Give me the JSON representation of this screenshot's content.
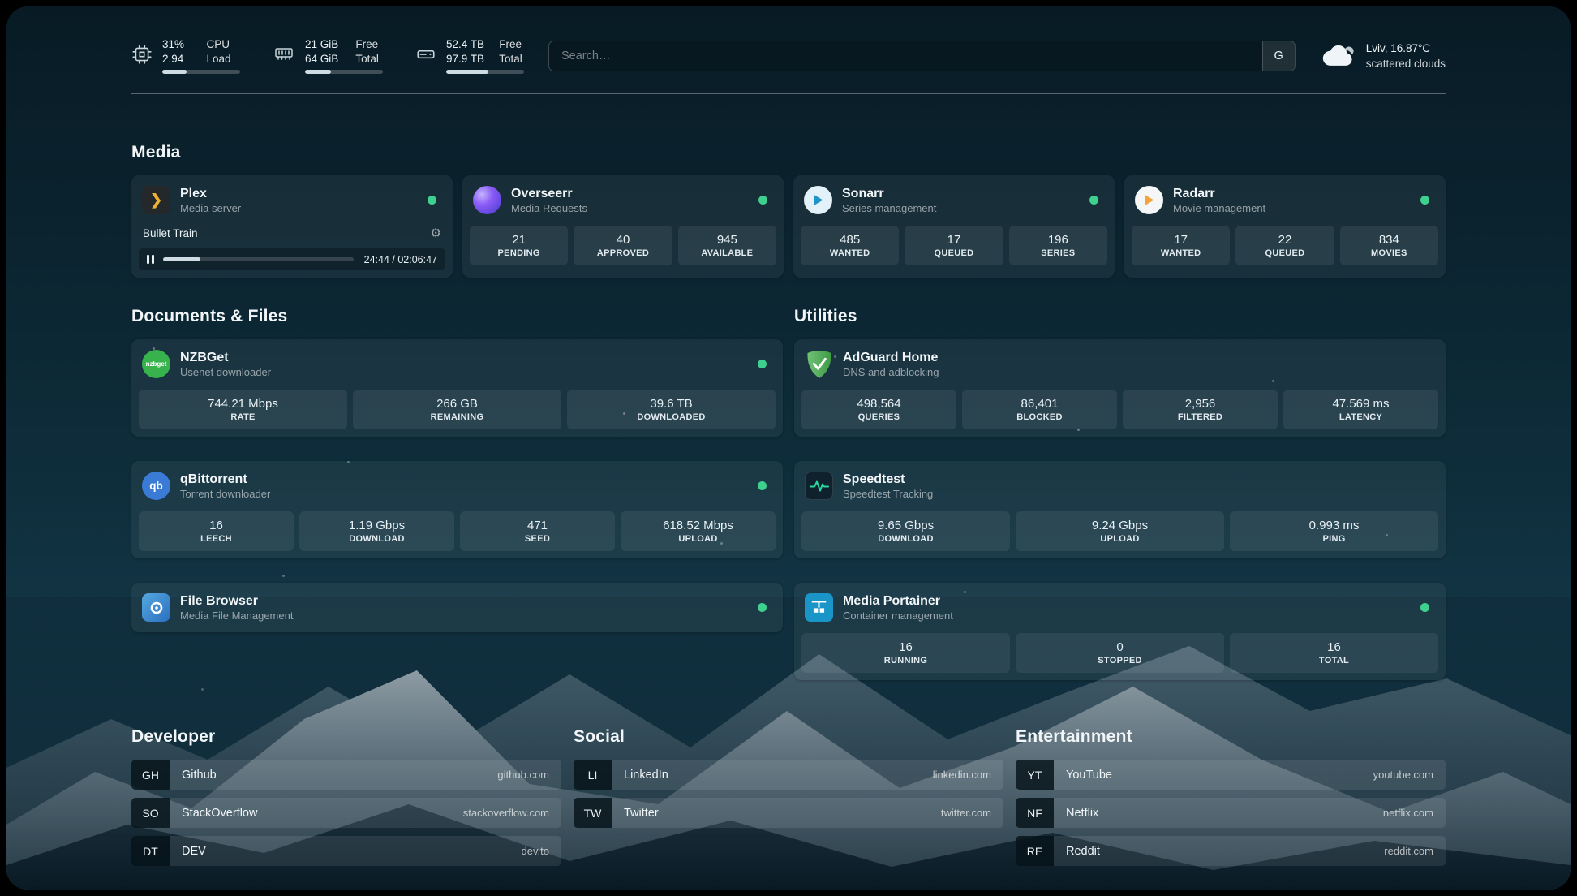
{
  "colors": {
    "status_online": "#3fcf8e"
  },
  "topbar": {
    "cpu": {
      "value1": "31%",
      "label1": "CPU",
      "value2": "2.94",
      "label2": "Load",
      "progress": 31
    },
    "memory": {
      "value1": "21 GiB",
      "label1": "Free",
      "value2": "64 GiB",
      "label2": "Total",
      "progress": 33
    },
    "disk": {
      "value1": "52.4 TB",
      "label1": "Free",
      "value2": "97.9 TB",
      "label2": "Total",
      "progress": 54
    },
    "search": {
      "placeholder": "Search…",
      "provider": "G"
    },
    "weather": {
      "location": "Lviv, 16.87°C",
      "condition": "scattered clouds"
    }
  },
  "sections": {
    "media": {
      "title": "Media"
    },
    "documents": {
      "title": "Documents & Files"
    },
    "utilities": {
      "title": "Utilities"
    },
    "developer": {
      "title": "Developer"
    },
    "social": {
      "title": "Social"
    },
    "entertainment": {
      "title": "Entertainment"
    }
  },
  "services": {
    "plex": {
      "name": "Plex",
      "desc": "Media server",
      "now_playing": "Bullet Train",
      "time": "24:44 / 02:06:47",
      "progress": 19.5
    },
    "overseerr": {
      "name": "Overseerr",
      "desc": "Media Requests",
      "stats": [
        {
          "value": "21",
          "label": "PENDING"
        },
        {
          "value": "40",
          "label": "APPROVED"
        },
        {
          "value": "945",
          "label": "AVAILABLE"
        }
      ]
    },
    "sonarr": {
      "name": "Sonarr",
      "desc": "Series management",
      "stats": [
        {
          "value": "485",
          "label": "WANTED"
        },
        {
          "value": "17",
          "label": "QUEUED"
        },
        {
          "value": "196",
          "label": "SERIES"
        }
      ]
    },
    "radarr": {
      "name": "Radarr",
      "desc": "Movie management",
      "stats": [
        {
          "value": "17",
          "label": "WANTED"
        },
        {
          "value": "22",
          "label": "QUEUED"
        },
        {
          "value": "834",
          "label": "MOVIES"
        }
      ]
    },
    "nzbget": {
      "name": "NZBGet",
      "desc": "Usenet downloader",
      "icon_text": "nzbget",
      "stats": [
        {
          "value": "744.21 Mbps",
          "label": "RATE"
        },
        {
          "value": "266 GB",
          "label": "REMAINING"
        },
        {
          "value": "39.6 TB",
          "label": "DOWNLOADED"
        }
      ]
    },
    "qbittorrent": {
      "name": "qBittorrent",
      "desc": "Torrent downloader",
      "icon_text": "qb",
      "stats": [
        {
          "value": "16",
          "label": "LEECH"
        },
        {
          "value": "1.19 Gbps",
          "label": "DOWNLOAD"
        },
        {
          "value": "471",
          "label": "SEED"
        },
        {
          "value": "618.52 Mbps",
          "label": "UPLOAD"
        }
      ]
    },
    "filebrowser": {
      "name": "File Browser",
      "desc": "Media File Management"
    },
    "adguard": {
      "name": "AdGuard Home",
      "desc": "DNS and adblocking",
      "stats": [
        {
          "value": "498,564",
          "label": "QUERIES"
        },
        {
          "value": "86,401",
          "label": "BLOCKED"
        },
        {
          "value": "2,956",
          "label": "FILTERED"
        },
        {
          "value": "47.569 ms",
          "label": "LATENCY"
        }
      ]
    },
    "speedtest": {
      "name": "Speedtest",
      "desc": "Speedtest Tracking",
      "stats": [
        {
          "value": "9.65 Gbps",
          "label": "DOWNLOAD"
        },
        {
          "value": "9.24 Gbps",
          "label": "UPLOAD"
        },
        {
          "value": "0.993 ms",
          "label": "PING"
        }
      ]
    },
    "portainer": {
      "name": "Media Portainer",
      "desc": "Container management",
      "stats": [
        {
          "value": "16",
          "label": "RUNNING"
        },
        {
          "value": "0",
          "label": "STOPPED"
        },
        {
          "value": "16",
          "label": "TOTAL"
        }
      ]
    }
  },
  "bookmarks": {
    "developer": [
      {
        "abbr": "GH",
        "name": "Github",
        "url": "github.com"
      },
      {
        "abbr": "SO",
        "name": "StackOverflow",
        "url": "stackoverflow.com"
      },
      {
        "abbr": "DT",
        "name": "DEV",
        "url": "dev.to"
      }
    ],
    "social": [
      {
        "abbr": "LI",
        "name": "LinkedIn",
        "url": "linkedin.com"
      },
      {
        "abbr": "TW",
        "name": "Twitter",
        "url": "twitter.com"
      }
    ],
    "entertainment": [
      {
        "abbr": "YT",
        "name": "YouTube",
        "url": "youtube.com"
      },
      {
        "abbr": "NF",
        "name": "Netflix",
        "url": "netflix.com"
      },
      {
        "abbr": "RE",
        "name": "Reddit",
        "url": "reddit.com"
      }
    ]
  }
}
